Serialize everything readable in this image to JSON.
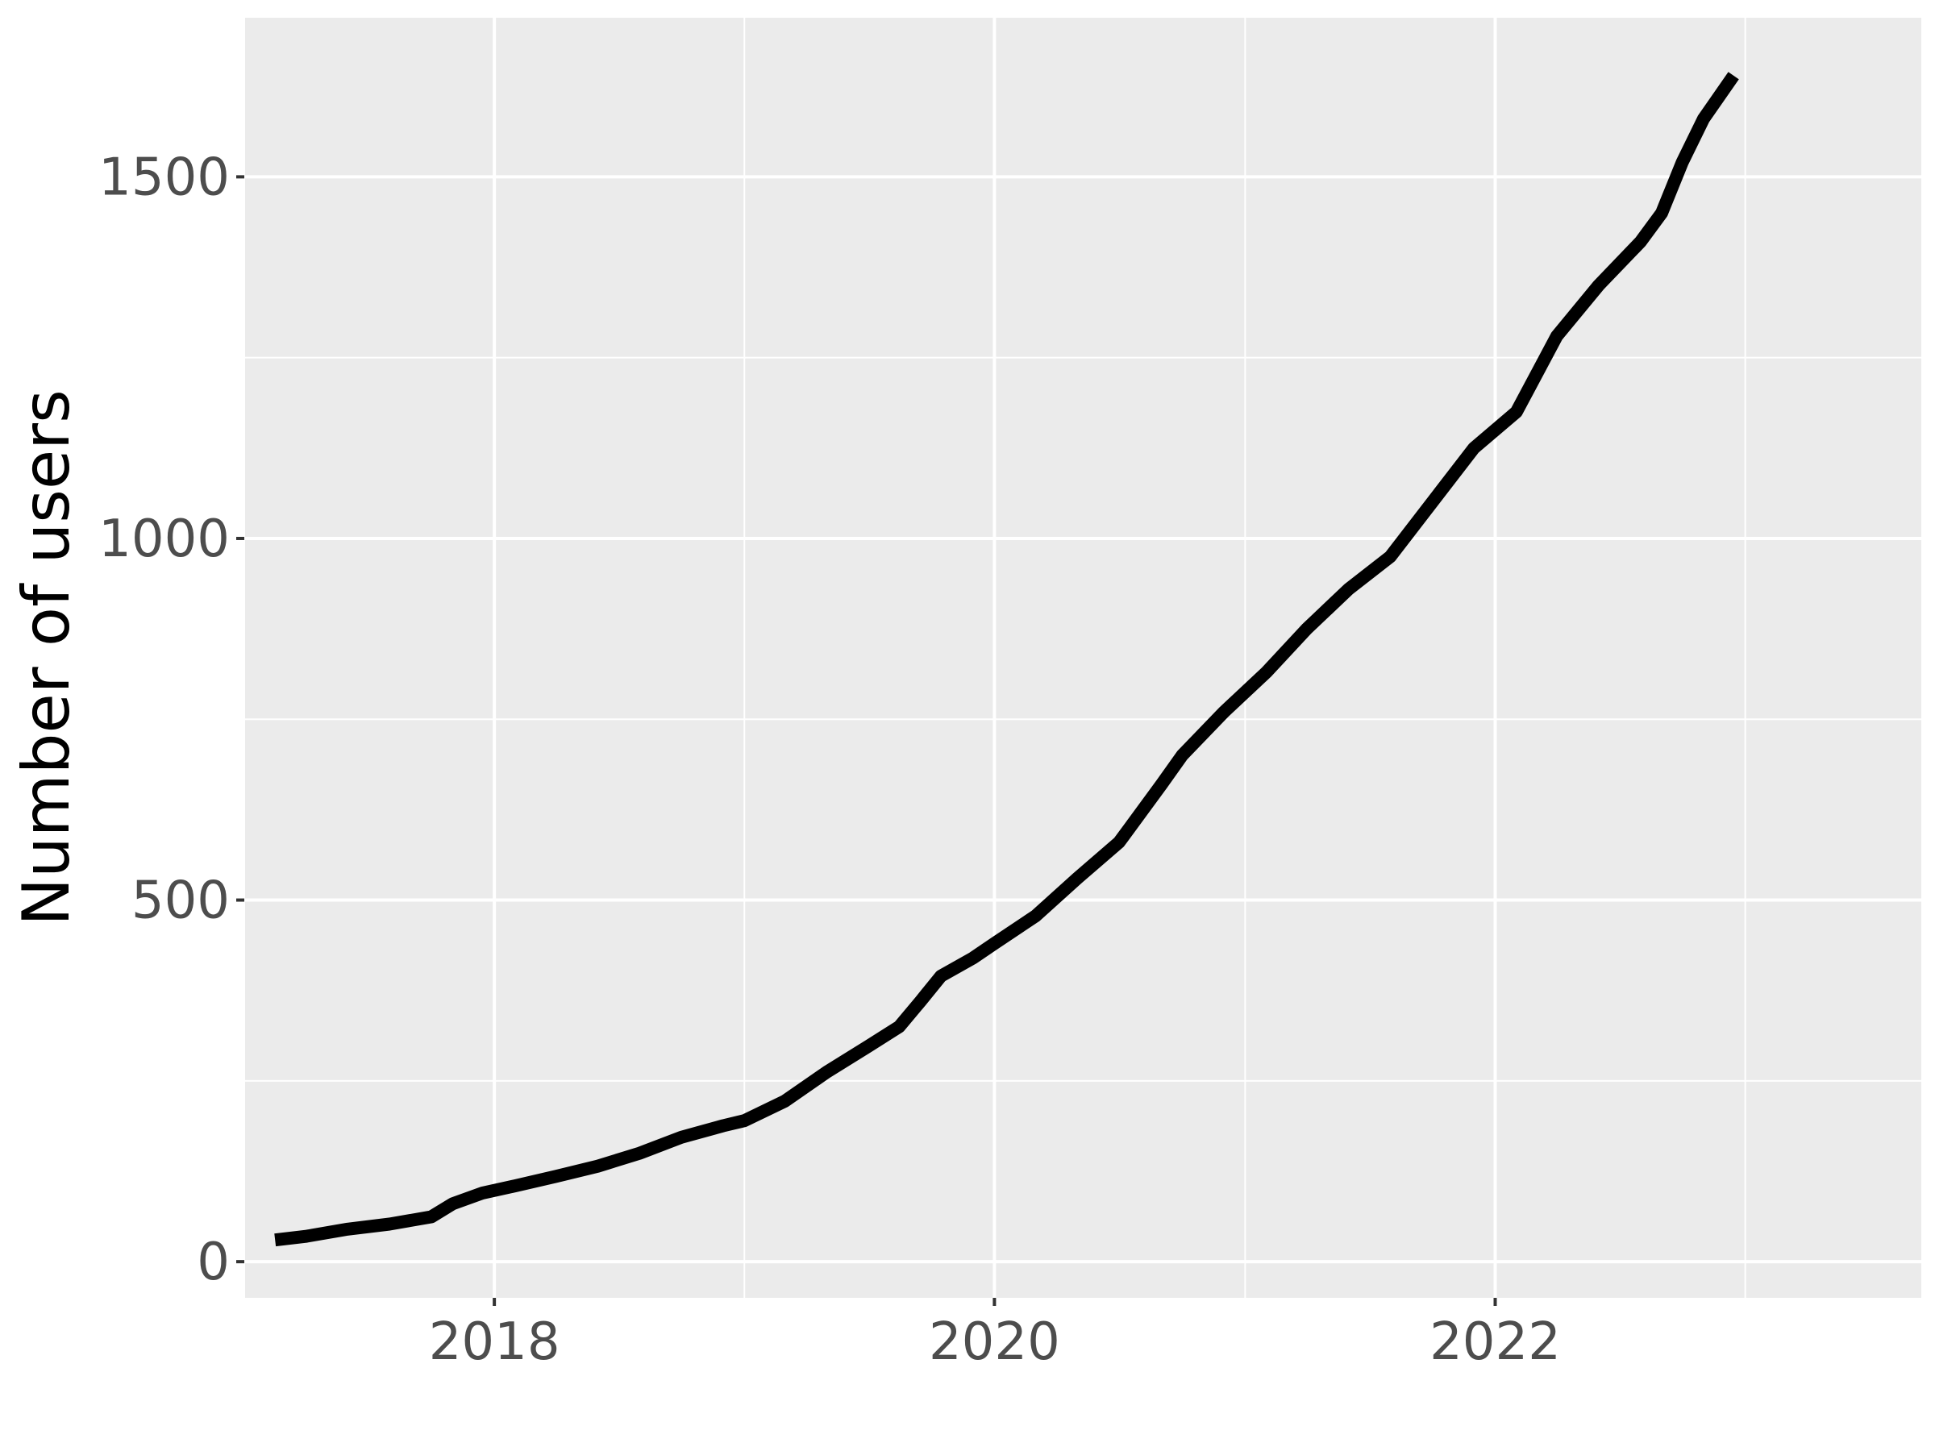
{
  "chart_data": {
    "type": "line",
    "title": "",
    "xlabel": "",
    "ylabel": "Number of users",
    "xlim": [
      "2017-01-01",
      "2023-09-15"
    ],
    "ylim": [
      -50,
      1720
    ],
    "x_ticks": [
      {
        "value": "2018-01-01",
        "label": "2018"
      },
      {
        "value": "2020-01-01",
        "label": "2020"
      },
      {
        "value": "2022-01-01",
        "label": "2022"
      }
    ],
    "x_minor_ticks": [
      "2017-01-01",
      "2019-01-01",
      "2021-01-01",
      "2023-01-01"
    ],
    "y_ticks": [
      {
        "value": 0,
        "label": "0"
      },
      {
        "value": 500,
        "label": "500"
      },
      {
        "value": 1000,
        "label": "1000"
      },
      {
        "value": 1500,
        "label": "1500"
      }
    ],
    "y_minor_ticks": [
      250,
      750,
      1250
    ],
    "grid": true,
    "series": [
      {
        "color": "#000000",
        "points": [
          [
            "2017-02-15",
            30
          ],
          [
            "2017-04-01",
            35
          ],
          [
            "2017-06-01",
            45
          ],
          [
            "2017-08-01",
            52
          ],
          [
            "2017-10-01",
            62
          ],
          [
            "2017-11-01",
            80
          ],
          [
            "2017-12-15",
            95
          ],
          [
            "2018-02-01",
            105
          ],
          [
            "2018-04-01",
            118
          ],
          [
            "2018-06-01",
            132
          ],
          [
            "2018-08-01",
            150
          ],
          [
            "2018-10-01",
            172
          ],
          [
            "2018-12-01",
            188
          ],
          [
            "2019-01-01",
            195
          ],
          [
            "2019-03-01",
            222
          ],
          [
            "2019-05-01",
            262
          ],
          [
            "2019-07-01",
            298
          ],
          [
            "2019-08-15",
            325
          ],
          [
            "2019-09-15",
            360
          ],
          [
            "2019-10-15",
            395
          ],
          [
            "2019-12-01",
            420
          ],
          [
            "2020-01-01",
            440
          ],
          [
            "2020-03-01",
            478
          ],
          [
            "2020-05-01",
            530
          ],
          [
            "2020-07-01",
            580
          ],
          [
            "2020-08-01",
            620
          ],
          [
            "2020-09-01",
            660
          ],
          [
            "2020-10-01",
            700
          ],
          [
            "2020-12-01",
            760
          ],
          [
            "2021-02-01",
            815
          ],
          [
            "2021-04-01",
            875
          ],
          [
            "2021-06-01",
            930
          ],
          [
            "2021-08-01",
            975
          ],
          [
            "2021-10-01",
            1050
          ],
          [
            "2021-12-01",
            1125
          ],
          [
            "2022-02-01",
            1175
          ],
          [
            "2022-04-01",
            1280
          ],
          [
            "2022-06-01",
            1350
          ],
          [
            "2022-08-01",
            1410
          ],
          [
            "2022-09-01",
            1450
          ],
          [
            "2022-10-01",
            1520
          ],
          [
            "2022-11-01",
            1580
          ],
          [
            "2022-12-15",
            1640
          ]
        ]
      }
    ]
  }
}
